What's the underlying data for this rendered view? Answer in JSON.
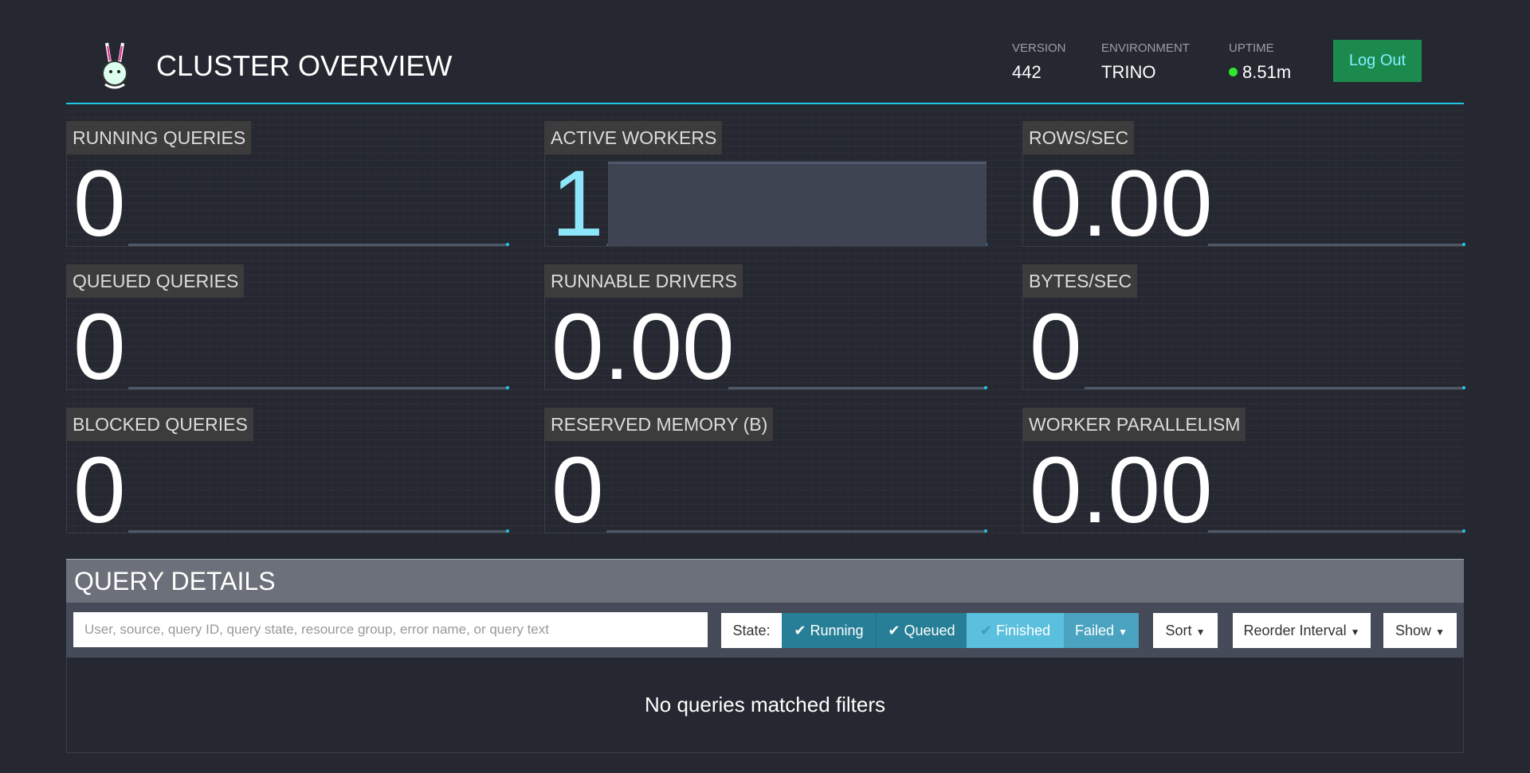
{
  "header": {
    "title": "CLUSTER OVERVIEW",
    "logo": "trino-bunny-logo",
    "version": {
      "label": "VERSION",
      "value": "442"
    },
    "environment": {
      "label": "ENVIRONMENT",
      "value": "TRINO"
    },
    "uptime": {
      "label": "UPTIME",
      "value": "8.51m",
      "status_color": "#2ee82e"
    },
    "logout_label": "Log Out"
  },
  "stats": [
    {
      "label": "RUNNING QUERIES",
      "value": "0"
    },
    {
      "label": "ACTIVE WORKERS",
      "value": "1"
    },
    {
      "label": "ROWS/SEC",
      "value": "0.00"
    },
    {
      "label": "QUEUED QUERIES",
      "value": "0"
    },
    {
      "label": "RUNNABLE DRIVERS",
      "value": "0.00"
    },
    {
      "label": "BYTES/SEC",
      "value": "0"
    },
    {
      "label": "BLOCKED QUERIES",
      "value": "0"
    },
    {
      "label": "RESERVED MEMORY (B)",
      "value": "0"
    },
    {
      "label": "WORKER PARALLELISM",
      "value": "0.00"
    }
  ],
  "query_details": {
    "title": "QUERY DETAILS",
    "search_placeholder": "User, source, query ID, query state, resource group, error name, or query text",
    "state_label": "State:",
    "states": [
      {
        "label": "Running",
        "checked": true
      },
      {
        "label": "Queued",
        "checked": true
      },
      {
        "label": "Finished",
        "checked": false
      },
      {
        "label": "Failed",
        "checked": false
      }
    ],
    "sort_label": "Sort",
    "reorder_label": "Reorder Interval",
    "show_label": "Show",
    "empty_message": "No queries matched filters"
  }
}
